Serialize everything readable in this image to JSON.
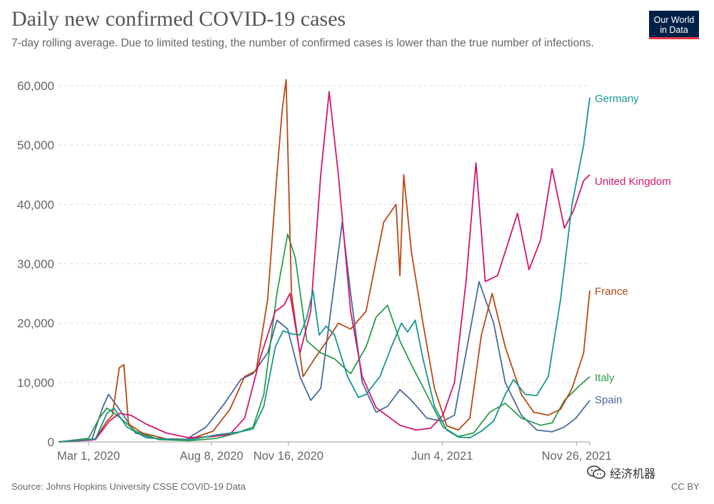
{
  "header": {
    "title": "Daily new confirmed COVID-19 cases",
    "subtitle": "7-day rolling average. Due to limited testing, the number of confirmed cases is lower than the true number of infections."
  },
  "logo": {
    "line1": "Our World",
    "line2": "in Data"
  },
  "footer": {
    "source": "Source: Johns Hopkins University CSSE COVID-19 Data",
    "license": "CC BY"
  },
  "watermark": {
    "text": "经济机器",
    "icon": "wechat-icon"
  },
  "chart_data": {
    "type": "line",
    "x_unit": "date",
    "x_range": [
      "2020-01-22",
      "2021-12-13"
    ],
    "y_range": [
      0,
      60000
    ],
    "y_ticks": [
      0,
      10000,
      20000,
      30000,
      40000,
      50000,
      60000
    ],
    "y_tick_labels": [
      "0",
      "10,000",
      "20,000",
      "30,000",
      "40,000",
      "50,000",
      "60,000"
    ],
    "x_ticks": [
      "2020-03-01",
      "2020-08-08",
      "2020-11-16",
      "2021-06-04",
      "2021-11-26"
    ],
    "x_tick_labels": [
      "Mar 1, 2020",
      "Aug 8, 2020",
      "Nov 16, 2020",
      "Jun 4, 2021",
      "Nov 26, 2021"
    ],
    "grid": "horizontal-dashed",
    "legend": "inline-right",
    "series": [
      {
        "name": "Germany",
        "color": "#18968f",
        "points": [
          [
            "2020-01-22",
            0
          ],
          [
            "2020-03-10",
            500
          ],
          [
            "2020-03-25",
            4800
          ],
          [
            "2020-04-03",
            5700
          ],
          [
            "2020-04-20",
            2500
          ],
          [
            "2020-05-15",
            700
          ],
          [
            "2020-06-20",
            400
          ],
          [
            "2020-07-15",
            450
          ],
          [
            "2020-08-15",
            1200
          ],
          [
            "2020-09-15",
            1700
          ],
          [
            "2020-10-01",
            2200
          ],
          [
            "2020-10-15",
            6000
          ],
          [
            "2020-10-30",
            16000
          ],
          [
            "2020-11-09",
            18700
          ],
          [
            "2020-11-20",
            18200
          ],
          [
            "2020-12-01",
            18000
          ],
          [
            "2020-12-10",
            21000
          ],
          [
            "2020-12-18",
            25500
          ],
          [
            "2020-12-26",
            18000
          ],
          [
            "2021-01-04",
            19500
          ],
          [
            "2021-01-15",
            18000
          ],
          [
            "2021-02-01",
            11000
          ],
          [
            "2021-02-15",
            7500
          ],
          [
            "2021-02-25",
            8000
          ],
          [
            "2021-03-15",
            11000
          ],
          [
            "2021-03-30",
            16000
          ],
          [
            "2021-04-12",
            20000
          ],
          [
            "2021-04-20",
            18500
          ],
          [
            "2021-04-30",
            20500
          ],
          [
            "2021-05-10",
            14000
          ],
          [
            "2021-05-25",
            6000
          ],
          [
            "2021-06-10",
            2000
          ],
          [
            "2021-06-25",
            800
          ],
          [
            "2021-07-10",
            700
          ],
          [
            "2021-07-25",
            1800
          ],
          [
            "2021-08-10",
            3500
          ],
          [
            "2021-08-25",
            8000
          ],
          [
            "2021-09-05",
            10500
          ],
          [
            "2021-09-20",
            8000
          ],
          [
            "2021-10-05",
            7800
          ],
          [
            "2021-10-20",
            11000
          ],
          [
            "2021-11-05",
            24000
          ],
          [
            "2021-11-20",
            40000
          ],
          [
            "2021-12-05",
            50000
          ],
          [
            "2021-12-13",
            58000
          ]
        ]
      },
      {
        "name": "United Kingdom",
        "color": "#d41671",
        "points": [
          [
            "2020-01-22",
            0
          ],
          [
            "2020-03-10",
            400
          ],
          [
            "2020-03-28",
            3500
          ],
          [
            "2020-04-10",
            4800
          ],
          [
            "2020-04-25",
            4500
          ],
          [
            "2020-05-15",
            3000
          ],
          [
            "2020-06-10",
            1500
          ],
          [
            "2020-07-10",
            700
          ],
          [
            "2020-08-10",
            900
          ],
          [
            "2020-09-01",
            1300
          ],
          [
            "2020-09-20",
            4000
          ],
          [
            "2020-10-10",
            14000
          ],
          [
            "2020-10-30",
            22000
          ],
          [
            "2020-11-10",
            23000
          ],
          [
            "2020-11-18",
            25000
          ],
          [
            "2020-12-01",
            15000
          ],
          [
            "2020-12-15",
            22000
          ],
          [
            "2020-12-28",
            45000
          ],
          [
            "2021-01-08",
            59000
          ],
          [
            "2021-01-20",
            45000
          ],
          [
            "2021-02-05",
            22000
          ],
          [
            "2021-02-20",
            11000
          ],
          [
            "2021-03-10",
            5800
          ],
          [
            "2021-04-10",
            2800
          ],
          [
            "2021-05-01",
            2000
          ],
          [
            "2021-05-20",
            2300
          ],
          [
            "2021-06-05",
            4500
          ],
          [
            "2021-06-20",
            10000
          ],
          [
            "2021-07-05",
            27000
          ],
          [
            "2021-07-18",
            47000
          ],
          [
            "2021-07-30",
            27000
          ],
          [
            "2021-08-15",
            28000
          ],
          [
            "2021-08-30",
            34000
          ],
          [
            "2021-09-10",
            38500
          ],
          [
            "2021-09-25",
            29000
          ],
          [
            "2021-10-10",
            34000
          ],
          [
            "2021-10-25",
            46000
          ],
          [
            "2021-11-10",
            36000
          ],
          [
            "2021-11-22",
            39000
          ],
          [
            "2021-12-05",
            44000
          ],
          [
            "2021-12-13",
            45000
          ]
        ]
      },
      {
        "name": "France",
        "color": "#b74a17",
        "points": [
          [
            "2020-01-22",
            0
          ],
          [
            "2020-03-10",
            500
          ],
          [
            "2020-03-25",
            3500
          ],
          [
            "2020-04-01",
            4500
          ],
          [
            "2020-04-10",
            12500
          ],
          [
            "2020-04-16",
            13000
          ],
          [
            "2020-04-22",
            3000
          ],
          [
            "2020-05-10",
            1500
          ],
          [
            "2020-06-10",
            500
          ],
          [
            "2020-07-10",
            450
          ],
          [
            "2020-08-10",
            1800
          ],
          [
            "2020-09-01",
            5500
          ],
          [
            "2020-09-20",
            11000
          ],
          [
            "2020-10-05",
            12000
          ],
          [
            "2020-10-20",
            24000
          ],
          [
            "2020-11-01",
            45000
          ],
          [
            "2020-11-08",
            56000
          ],
          [
            "2020-11-13",
            61000
          ],
          [
            "2020-11-20",
            25000
          ],
          [
            "2020-12-05",
            11000
          ],
          [
            "2020-12-20",
            14000
          ],
          [
            "2021-01-05",
            17000
          ],
          [
            "2021-01-20",
            20000
          ],
          [
            "2021-02-05",
            19000
          ],
          [
            "2021-02-25",
            22000
          ],
          [
            "2021-03-20",
            37000
          ],
          [
            "2021-04-05",
            40000
          ],
          [
            "2021-04-10",
            28000
          ],
          [
            "2021-04-15",
            45000
          ],
          [
            "2021-04-25",
            32000
          ],
          [
            "2021-05-10",
            20000
          ],
          [
            "2021-05-25",
            9000
          ],
          [
            "2021-06-10",
            2700
          ],
          [
            "2021-06-25",
            2000
          ],
          [
            "2021-07-10",
            4000
          ],
          [
            "2021-07-25",
            18000
          ],
          [
            "2021-08-08",
            25000
          ],
          [
            "2021-08-25",
            16000
          ],
          [
            "2021-09-15",
            8000
          ],
          [
            "2021-10-01",
            5000
          ],
          [
            "2021-10-20",
            4500
          ],
          [
            "2021-11-05",
            5500
          ],
          [
            "2021-11-20",
            9000
          ],
          [
            "2021-12-05",
            15000
          ],
          [
            "2021-12-13",
            25500
          ]
        ]
      },
      {
        "name": "Italy",
        "color": "#2e9c4b",
        "points": [
          [
            "2020-01-22",
            0
          ],
          [
            "2020-03-01",
            600
          ],
          [
            "2020-03-15",
            4000
          ],
          [
            "2020-03-25",
            5700
          ],
          [
            "2020-04-10",
            4200
          ],
          [
            "2020-05-01",
            1800
          ],
          [
            "2020-06-01",
            400
          ],
          [
            "2020-07-10",
            200
          ],
          [
            "2020-08-15",
            600
          ],
          [
            "2020-09-10",
            1500
          ],
          [
            "2020-10-01",
            2500
          ],
          [
            "2020-10-15",
            8000
          ],
          [
            "2020-11-01",
            25000
          ],
          [
            "2020-11-15",
            35000
          ],
          [
            "2020-11-25",
            31000
          ],
          [
            "2020-12-10",
            17000
          ],
          [
            "2020-12-28",
            15000
          ],
          [
            "2021-01-15",
            14000
          ],
          [
            "2021-02-05",
            11500
          ],
          [
            "2021-02-25",
            16000
          ],
          [
            "2021-03-10",
            21000
          ],
          [
            "2021-03-25",
            23000
          ],
          [
            "2021-04-10",
            17000
          ],
          [
            "2021-04-25",
            13000
          ],
          [
            "2021-05-15",
            8000
          ],
          [
            "2021-06-05",
            2500
          ],
          [
            "2021-06-25",
            900
          ],
          [
            "2021-07-15",
            1500
          ],
          [
            "2021-08-05",
            5000
          ],
          [
            "2021-08-25",
            6500
          ],
          [
            "2021-09-15",
            4000
          ],
          [
            "2021-10-10",
            2800
          ],
          [
            "2021-10-25",
            3200
          ],
          [
            "2021-11-10",
            7000
          ],
          [
            "2021-11-30",
            9500
          ],
          [
            "2021-12-13",
            11000
          ]
        ]
      },
      {
        "name": "Spain",
        "color": "#4c6a9c",
        "points": [
          [
            "2020-01-22",
            0
          ],
          [
            "2020-03-05",
            300
          ],
          [
            "2020-03-20",
            6000
          ],
          [
            "2020-03-27",
            8000
          ],
          [
            "2020-04-10",
            5500
          ],
          [
            "2020-05-01",
            1500
          ],
          [
            "2020-06-01",
            400
          ],
          [
            "2020-07-05",
            350
          ],
          [
            "2020-08-01",
            2500
          ],
          [
            "2020-08-25",
            6500
          ],
          [
            "2020-09-15",
            10500
          ],
          [
            "2020-10-01",
            11500
          ],
          [
            "2020-10-20",
            15000
          ],
          [
            "2020-11-01",
            20500
          ],
          [
            "2020-11-15",
            19000
          ],
          [
            "2020-12-01",
            11000
          ],
          [
            "2020-12-15",
            7000
          ],
          [
            "2020-12-28",
            9000
          ],
          [
            "2021-01-10",
            22000
          ],
          [
            "2021-01-25",
            37000
          ],
          [
            "2021-02-05",
            25000
          ],
          [
            "2021-02-20",
            10000
          ],
          [
            "2021-03-10",
            5000
          ],
          [
            "2021-03-25",
            6000
          ],
          [
            "2021-04-10",
            8800
          ],
          [
            "2021-04-25",
            7000
          ],
          [
            "2021-05-15",
            4000
          ],
          [
            "2021-06-05",
            3500
          ],
          [
            "2021-06-20",
            4500
          ],
          [
            "2021-07-05",
            15000
          ],
          [
            "2021-07-22",
            27000
          ],
          [
            "2021-08-10",
            20000
          ],
          [
            "2021-08-25",
            10000
          ],
          [
            "2021-09-15",
            4500
          ],
          [
            "2021-10-05",
            2000
          ],
          [
            "2021-10-25",
            1700
          ],
          [
            "2021-11-10",
            2500
          ],
          [
            "2021-11-25",
            4000
          ],
          [
            "2021-12-13",
            7000
          ]
        ]
      }
    ]
  }
}
